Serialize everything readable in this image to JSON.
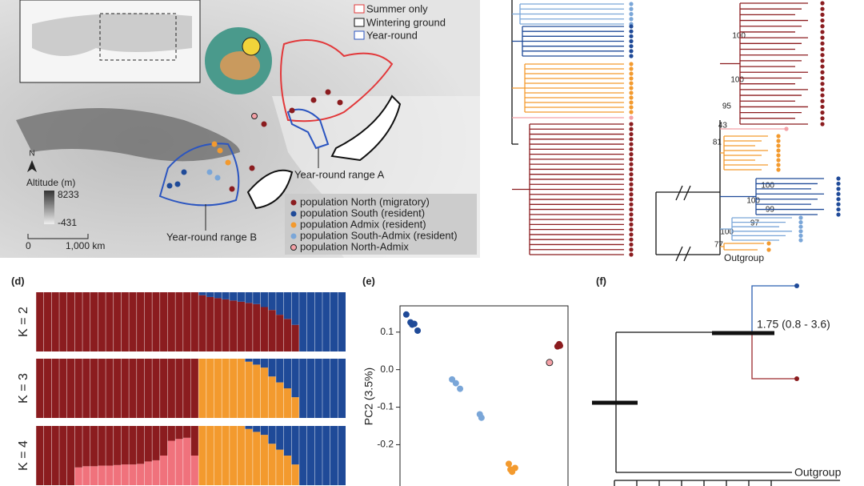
{
  "map": {
    "legend": [
      "Summer only",
      "Wintering ground",
      "Year-round"
    ],
    "north": "N",
    "altitude_title": "Altitude (m)",
    "altitude_max": 8233,
    "altitude_min": -431,
    "scale_labels": [
      "0",
      "1,000 km"
    ],
    "range_labels": [
      "Year-round range A",
      "Year-round range B"
    ],
    "populations": [
      "population North (migratory)",
      "population South (resident)",
      "population Admix (resident)",
      "population South-Admix (resident)",
      "population North-Admix"
    ]
  },
  "tree_c": {
    "bootstrap": [
      100,
      100,
      95,
      43,
      81,
      100,
      100,
      99,
      97,
      100,
      77
    ],
    "outgroup": "Outgroup"
  },
  "structure": {
    "panel": "(d)",
    "rows": [
      {
        "label": "K = 2",
        "series": [
          {
            "color": "#8b1c1f",
            "values": [
              1,
              1,
              1,
              1,
              1,
              1,
              1,
              1,
              1,
              1,
              1,
              1,
              1,
              1,
              1,
              1,
              1,
              1,
              1,
              1,
              1,
              0.95,
              0.92,
              0.9,
              0.88,
              0.86,
              0.84,
              0.82,
              0.8,
              0.75,
              0.7,
              0.62,
              0.55,
              0.45,
              0,
              0,
              0,
              0,
              0,
              0
            ]
          },
          {
            "color": "#1f4a98",
            "values": [
              0,
              0,
              0,
              0,
              0,
              0,
              0,
              0,
              0,
              0,
              0,
              0,
              0,
              0,
              0,
              0,
              0,
              0,
              0,
              0,
              0,
              0.05,
              0.08,
              0.1,
              0.12,
              0.14,
              0.16,
              0.18,
              0.2,
              0.25,
              0.3,
              0.38,
              0.45,
              0.55,
              1,
              1,
              1,
              1,
              1,
              1
            ]
          }
        ]
      },
      {
        "label": "K = 3",
        "series": [
          {
            "color": "#8b1c1f",
            "values": [
              1,
              1,
              1,
              1,
              1,
              1,
              1,
              1,
              1,
              1,
              1,
              1,
              1,
              1,
              1,
              1,
              1,
              1,
              1,
              1,
              1,
              0,
              0,
              0,
              0,
              0,
              0,
              0,
              0,
              0,
              0,
              0,
              0,
              0,
              0,
              0,
              0,
              0,
              0,
              0
            ]
          },
          {
            "color": "#f39a2e",
            "values": [
              0,
              0,
              0,
              0,
              0,
              0,
              0,
              0,
              0,
              0,
              0,
              0,
              0,
              0,
              0,
              0,
              0,
              0,
              0,
              0,
              0,
              1,
              1,
              1,
              1,
              1,
              1,
              0.95,
              0.9,
              0.85,
              0.7,
              0.6,
              0.5,
              0.35,
              0,
              0,
              0,
              0,
              0,
              0
            ]
          },
          {
            "color": "#1f4a98",
            "values": [
              0,
              0,
              0,
              0,
              0,
              0,
              0,
              0,
              0,
              0,
              0,
              0,
              0,
              0,
              0,
              0,
              0,
              0,
              0,
              0,
              0,
              0,
              0,
              0,
              0,
              0,
              0,
              0.05,
              0.1,
              0.15,
              0.3,
              0.4,
              0.5,
              0.65,
              1,
              1,
              1,
              1,
              1,
              1
            ]
          }
        ]
      },
      {
        "label": "K = 4",
        "series": [
          {
            "color": "#f0727c",
            "values": [
              0,
              0,
              0,
              0,
              0,
              0.3,
              0.32,
              0.32,
              0.33,
              0.33,
              0.34,
              0.35,
              0.35,
              0.36,
              0.4,
              0.42,
              0.5,
              0.75,
              0.78,
              0.8,
              0.5,
              0,
              0,
              0,
              0,
              0,
              0,
              0,
              0,
              0,
              0,
              0,
              0,
              0,
              0,
              0,
              0,
              0,
              0,
              0
            ]
          },
          {
            "color": "#8b1c1f",
            "values": [
              1,
              1,
              1,
              1,
              1,
              0.7,
              0.68,
              0.68,
              0.67,
              0.67,
              0.66,
              0.65,
              0.65,
              0.64,
              0.6,
              0.58,
              0.5,
              0.25,
              0.22,
              0.2,
              0.5,
              0,
              0,
              0,
              0,
              0,
              0,
              0,
              0,
              0,
              0,
              0,
              0,
              0,
              0,
              0,
              0,
              0,
              0,
              0
            ]
          },
          {
            "color": "#f39a2e",
            "values": [
              0,
              0,
              0,
              0,
              0,
              0,
              0,
              0,
              0,
              0,
              0,
              0,
              0,
              0,
              0,
              0,
              0,
              0,
              0,
              0,
              0,
              1,
              1,
              1,
              1,
              1,
              1,
              0.95,
              0.9,
              0.85,
              0.7,
              0.6,
              0.5,
              0.35,
              0,
              0,
              0,
              0,
              0,
              0
            ]
          },
          {
            "color": "#1f4a98",
            "values": [
              0,
              0,
              0,
              0,
              0,
              0,
              0,
              0,
              0,
              0,
              0,
              0,
              0,
              0,
              0,
              0,
              0,
              0,
              0,
              0,
              0,
              0,
              0,
              0,
              0,
              0,
              0,
              0.05,
              0.1,
              0.15,
              0.3,
              0.4,
              0.5,
              0.65,
              1,
              1,
              1,
              1,
              1,
              1
            ]
          }
        ]
      }
    ]
  },
  "chart_data": {
    "type": "scatter",
    "panel": "(e)",
    "ylabel": "PC2 (3.5%)",
    "xlim": [
      -0.2,
      0.2
    ],
    "ylim": [
      -0.31,
      0.17
    ],
    "yticks": [
      0.1,
      {
        "value": 0,
        "label": "0.0"
      },
      -0.1,
      -0.2
    ],
    "series": [
      {
        "color": "#1f4a98",
        "x": [
          -0.185,
          -0.175,
          -0.171,
          -0.166,
          -0.158
        ],
        "values": [
          0.147,
          0.126,
          0.12,
          0.122,
          0.104
        ]
      },
      {
        "color": "#7aa6d8",
        "x": [
          -0.076,
          -0.067,
          -0.057,
          -0.01,
          -0.006
        ],
        "values": [
          -0.026,
          -0.036,
          -0.051,
          -0.119,
          -0.128
        ]
      },
      {
        "color": "#f39a2e",
        "x": [
          0.059,
          0.067,
          0.074,
          0.063
        ],
        "values": [
          -0.251,
          -0.272,
          -0.262,
          -0.266
        ]
      },
      {
        "color": "#8b1c1f",
        "x": [
          0.179,
          0.181,
          0.175
        ],
        "values": [
          0.068,
          0.064,
          0.062
        ]
      },
      {
        "color": "#f4a0a6",
        "x": [
          0.156
        ],
        "values": [
          0.019
        ]
      }
    ]
  },
  "divergence": {
    "panel": "(f)",
    "label": "1.75 (0.8 - 3.6)",
    "outgroup": "Outgroup"
  }
}
